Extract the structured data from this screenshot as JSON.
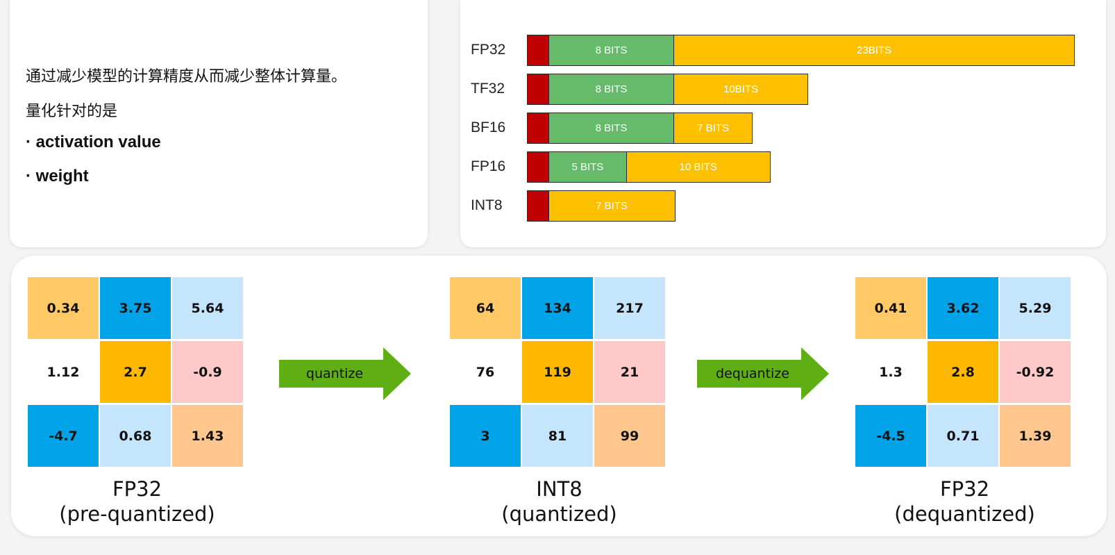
{
  "intro": {
    "line1": "通过减少模型的计算精度从而减少整体计算量。",
    "line2": "量化针对的是",
    "bullet1": "· activation value",
    "bullet2": "· weight"
  },
  "formats": [
    {
      "name": "FP32",
      "sign_bits": 1,
      "exp_bits": 8,
      "mantissa_bits": 23,
      "exp_label": "8 BITS",
      "mantissa_label": "23BITS"
    },
    {
      "name": "TF32",
      "sign_bits": 1,
      "exp_bits": 8,
      "mantissa_bits": 10,
      "exp_label": "8 BITS",
      "mantissa_label": "10BITS"
    },
    {
      "name": "BF16",
      "sign_bits": 1,
      "exp_bits": 8,
      "mantissa_bits": 7,
      "exp_label": "8 BITS",
      "mantissa_label": "7 BITS"
    },
    {
      "name": "FP16",
      "sign_bits": 1,
      "exp_bits": 5,
      "mantissa_bits": 10,
      "exp_label": "5 BITS",
      "mantissa_label": "10 BITS"
    },
    {
      "name": "INT8",
      "sign_bits": 1,
      "exp_bits": 0,
      "mantissa_bits": 7,
      "exp_label": "",
      "mantissa_label": "7 BITS"
    }
  ],
  "format_colors": {
    "sign": "#c00000",
    "exponent": "#66bb6a",
    "mantissa": "#ffc000"
  },
  "matrix_palette": [
    "#ffc966",
    "#00a2e8",
    "#c5e5fd",
    "#ffffff",
    "#ffb800",
    "#ffc9c9",
    "#00a2e8",
    "#c5e5fd",
    "#ffc78e"
  ],
  "matrices": [
    {
      "caption_line1": "FP32",
      "caption_line2": "(pre-quantized)",
      "values": [
        "0.34",
        "3.75",
        "5.64",
        "1.12",
        "2.7",
        "-0.9",
        "-4.7",
        "0.68",
        "1.43"
      ]
    },
    {
      "caption_line1": "INT8",
      "caption_line2": "(quantized)",
      "values": [
        "64",
        "134",
        "217",
        "76",
        "119",
        "21",
        "3",
        "81",
        "99"
      ]
    },
    {
      "caption_line1": "FP32",
      "caption_line2": "(dequantized)",
      "values": [
        "0.41",
        "3.62",
        "5.29",
        "1.3",
        "2.8",
        "-0.92",
        "-4.5",
        "0.71",
        "1.39"
      ]
    }
  ],
  "arrows": [
    {
      "label": "quantize",
      "color": "#5fae14"
    },
    {
      "label": "dequantize",
      "color": "#5fae14"
    }
  ]
}
